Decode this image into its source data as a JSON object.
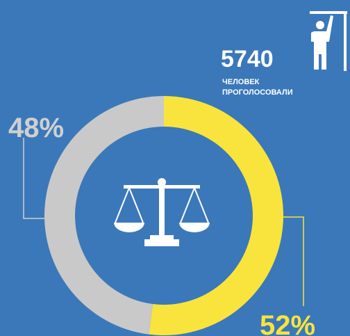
{
  "chart_data": {
    "type": "donut",
    "values": [
      52,
      48
    ],
    "value_labels": [
      "52%",
      "48%"
    ],
    "colors": [
      "#f8e43c",
      "#c9c9c9"
    ],
    "total": 5740,
    "total_caption": [
      "ЧЕЛОВЕК",
      "ПРОГОЛОСОВАЛИ"
    ]
  }
}
